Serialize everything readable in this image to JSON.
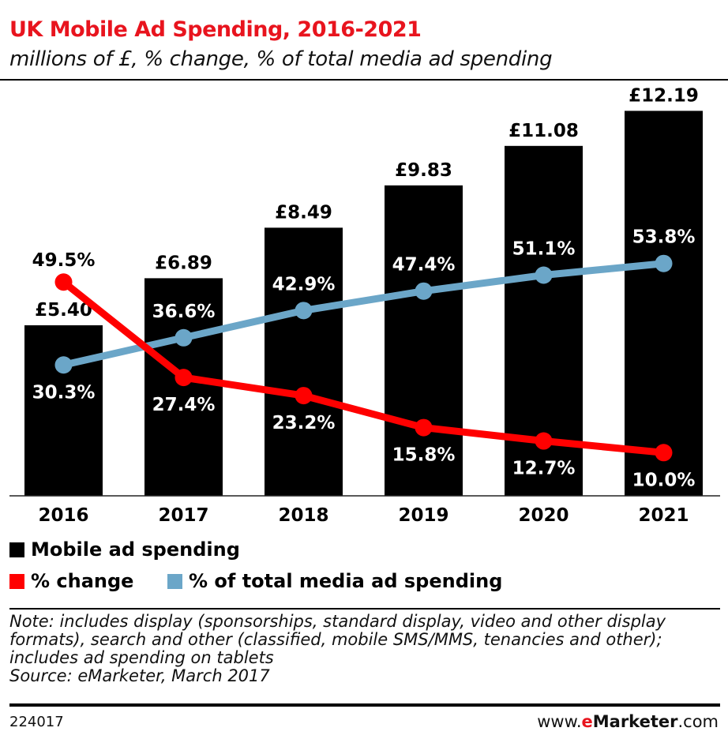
{
  "chart_data": {
    "type": "bar",
    "title": "UK Mobile Ad Spending, 2016-2021",
    "subtitle": "millions of £, % change, % of total media ad spending",
    "categories": [
      "2016",
      "2017",
      "2018",
      "2019",
      "2020",
      "2021"
    ],
    "series": [
      {
        "name": "Mobile ad spending",
        "type": "bar",
        "color": "#000000",
        "values": [
          5.4,
          6.89,
          8.49,
          9.83,
          11.08,
          12.19
        ],
        "labels": [
          "£5.40",
          "£6.89",
          "£8.49",
          "£9.83",
          "£11.08",
          "£12.19"
        ]
      },
      {
        "name": "% change",
        "type": "line",
        "color": "#ff0000",
        "values": [
          49.5,
          27.4,
          23.2,
          15.8,
          12.7,
          10.0
        ],
        "labels": [
          "49.5%",
          "27.4%",
          "23.2%",
          "15.8%",
          "12.7%",
          "10.0%"
        ]
      },
      {
        "name": "% of total media ad spending",
        "type": "line",
        "color": "#6ba6c8",
        "values": [
          30.3,
          36.6,
          42.9,
          47.4,
          51.1,
          53.8
        ],
        "labels": [
          "30.3%",
          "36.6%",
          "42.9%",
          "47.4%",
          "51.1%",
          "53.8%"
        ]
      }
    ],
    "grid": false,
    "legend_placement": "bottom-left"
  },
  "note": "Note: includes display (sponsorships, standard display, video and other display formats), search and other (classified, mobile SMS/MMS, tenancies and other); includes ad spending on tablets",
  "source": "Source: eMarketer, March 2017",
  "chart_id": "224017",
  "brand": {
    "prefix": "www.",
    "e": "e",
    "name": "Marketer",
    "suffix": ".com"
  }
}
